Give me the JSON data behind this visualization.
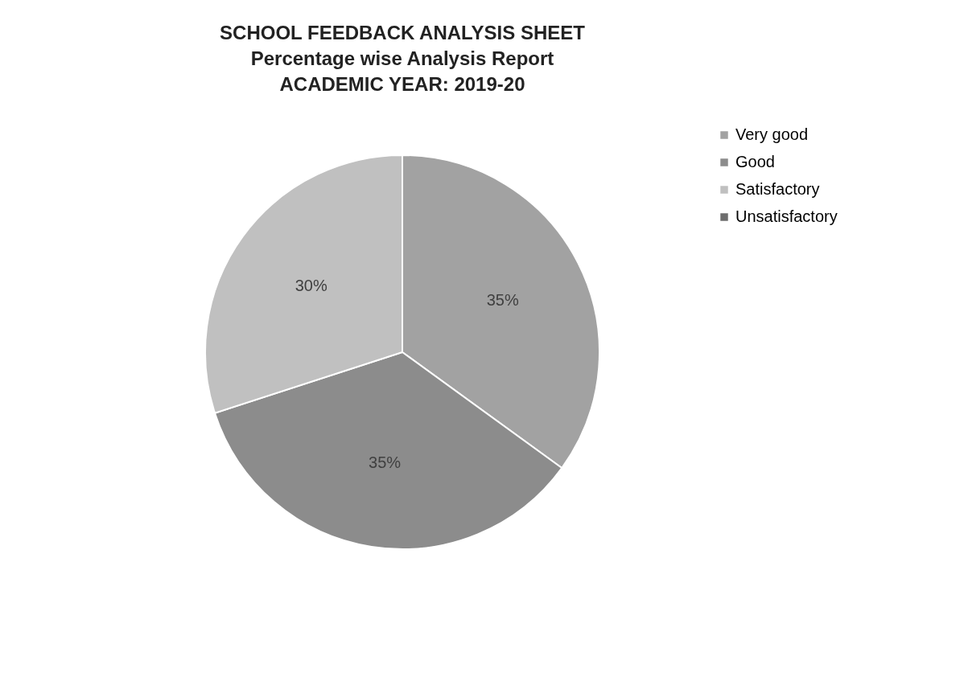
{
  "chart_data": {
    "type": "pie",
    "title": "SCHOOL FEEDBACK ANALYSIS SHEET\nPercentage wise Analysis Report\nACADEMIC YEAR: 2019-20",
    "categories": [
      "Very good",
      "Good",
      "Satisfactory",
      "Unsatisfactory"
    ],
    "values": [
      35,
      35,
      30,
      0
    ],
    "colors": [
      "#a2a2a2",
      "#8c8c8c",
      "#c0c0c0",
      "#6e6e6e"
    ],
    "value_labels": [
      "35%",
      "35%",
      "30%",
      null
    ],
    "legend": "right"
  }
}
